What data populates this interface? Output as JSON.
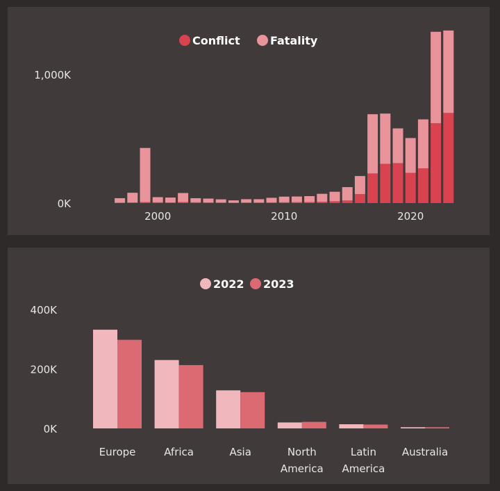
{
  "colors": {
    "conflict": "#d9434f",
    "fatality": "#e9939b",
    "y2022": "#f0b7bd",
    "y2023": "#dc6a73"
  },
  "chart_data": [
    {
      "type": "bar",
      "stacked": true,
      "legend": [
        "Conflict",
        "Fatality"
      ],
      "legend_position": "top-center",
      "x": [
        1997,
        1998,
        1999,
        2000,
        2001,
        2002,
        2003,
        2004,
        2005,
        2006,
        2007,
        2008,
        2009,
        2010,
        2011,
        2012,
        2013,
        2014,
        2015,
        2016,
        2017,
        2018,
        2019,
        2020,
        2021,
        2022,
        2023
      ],
      "series": [
        {
          "name": "Conflict",
          "values": [
            3,
            5,
            8,
            6,
            5,
            8,
            6,
            5,
            4,
            3,
            4,
            4,
            5,
            6,
            7,
            8,
            10,
            14,
            20,
            70,
            230,
            305,
            310,
            235,
            270,
            620,
            700
          ]
        },
        {
          "name": "Fatality",
          "values": [
            35,
            75,
            420,
            40,
            38,
            70,
            32,
            30,
            25,
            18,
            26,
            26,
            36,
            44,
            44,
            46,
            62,
            74,
            104,
            140,
            460,
            390,
            270,
            270,
            380,
            710,
            640
          ]
        }
      ],
      "xticks": [
        2000,
        2010,
        2020
      ],
      "xtick_labels": [
        "2000",
        "2010",
        "2020"
      ],
      "yticks": [
        0,
        1000
      ],
      "ytick_labels": [
        "0K",
        "1,000K"
      ],
      "ylim": [
        0,
        1350
      ],
      "unit": "K"
    },
    {
      "type": "bar",
      "grouped": true,
      "legend": [
        "2022",
        "2023"
      ],
      "legend_position": "top-center",
      "categories": [
        "Europe",
        "Africa",
        "Asia",
        "North America",
        "Latin America",
        "Australia"
      ],
      "category_labels": [
        [
          "Europe"
        ],
        [
          "Africa"
        ],
        [
          "Asia"
        ],
        [
          "North",
          "America"
        ],
        [
          "Latin",
          "America"
        ],
        [
          "Australia"
        ]
      ],
      "series": [
        {
          "name": "2022",
          "values": [
            332,
            230,
            128,
            20,
            14,
            4
          ]
        },
        {
          "name": "2023",
          "values": [
            298,
            213,
            122,
            22,
            13,
            4
          ]
        }
      ],
      "yticks": [
        0,
        200,
        400
      ],
      "ytick_labels": [
        "0K",
        "200K",
        "400K"
      ],
      "ylim": [
        0,
        400
      ],
      "unit": "K"
    }
  ]
}
